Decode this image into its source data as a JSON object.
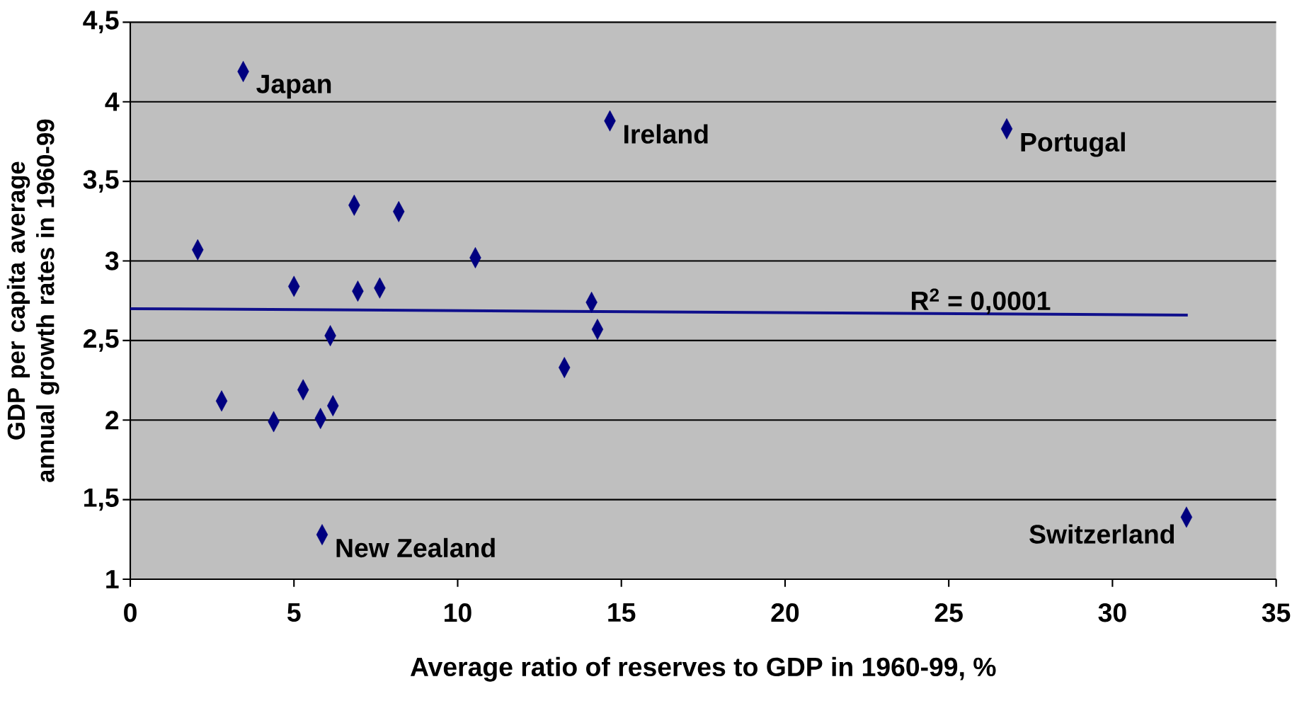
{
  "chart_data": {
    "type": "scatter",
    "xlabel": "Average ratio of reserves to GDP in 1960-99, %",
    "ylabel": "GDP per capita average annual growth rates in 1960-99",
    "xlim": [
      0,
      35
    ],
    "xticks": [
      0,
      5,
      10,
      15,
      20,
      25,
      30,
      35
    ],
    "ylim": [
      1,
      4.5
    ],
    "yticks": [
      1,
      {
        "value": 1.5,
        "label": "1,5"
      },
      2,
      {
        "value": 2.5,
        "label": "2,5"
      },
      3,
      {
        "value": 3.5,
        "label": "3,5"
      },
      4,
      {
        "value": 4.5,
        "label": "4,5"
      }
    ],
    "grid": "y",
    "marker": "diamond",
    "series": [
      {
        "color": "#000080",
        "x": [
          3.45,
          14.65,
          26.77,
          2.06,
          6.84,
          8.2,
          10.54,
          5.0,
          6.95,
          7.62,
          6.11,
          14.09,
          14.27,
          13.26,
          2.79,
          5.28,
          4.38,
          5.81,
          6.19,
          5.86,
          32.26
        ],
        "values": [
          4.19,
          3.88,
          3.83,
          3.07,
          3.35,
          3.31,
          3.02,
          2.84,
          2.81,
          2.83,
          2.53,
          2.74,
          2.57,
          2.33,
          2.12,
          2.19,
          1.99,
          2.01,
          2.09,
          1.28,
          1.39
        ]
      },
      {
        "type": "line",
        "color": "#10108c",
        "marker": "none",
        "x": [
          0,
          32.3
        ],
        "values": [
          2.7,
          2.66
        ]
      }
    ],
    "annotations": [
      {
        "text": "Japan",
        "x": 3.45,
        "y": 4.19
      },
      {
        "text": "Ireland",
        "x": 14.65,
        "y": 3.88
      },
      {
        "text": "Portugal",
        "x": 26.77,
        "y": 3.83
      },
      {
        "text": "New Zealand",
        "x": 5.86,
        "y": 1.28
      },
      {
        "text": "Switzerland",
        "x": 32.26,
        "y": 1.39
      },
      "R$^{2}$ = 0,0001"
    ]
  }
}
